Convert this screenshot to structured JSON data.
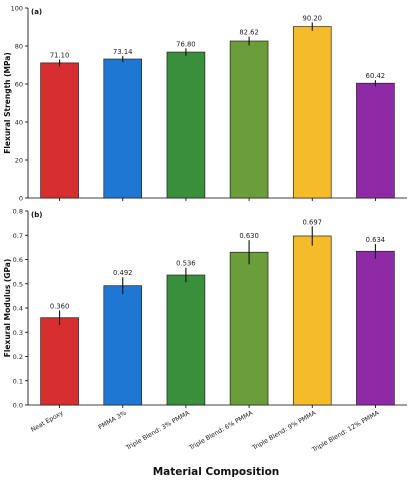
{
  "figure": {
    "xlabel": "Material Composition"
  },
  "chart_data": [
    {
      "type": "bar",
      "panel_label": "(a)",
      "ylabel": "Flexural Strength (MPa)",
      "ylim": [
        0,
        100
      ],
      "yticks": [
        0,
        20,
        40,
        60,
        80,
        100
      ],
      "categories": [
        "Neat Epoxy",
        "PMMA 3%",
        "Triple Blend: 3% PMMA",
        "Triple Blend: 6% PMMA",
        "Triple Blend: 9% PMMA",
        "Triple Blend: 12% PMMA"
      ],
      "values": [
        71.1,
        73.14,
        76.8,
        82.62,
        90.2,
        60.42
      ],
      "value_labels": [
        "71.10",
        "73.14",
        "76.80",
        "82.62",
        "90.20",
        "60.42"
      ],
      "errors": [
        1.8,
        1.7,
        2.0,
        2.3,
        2.2,
        1.6
      ],
      "colors": [
        "#d62e2e",
        "#1f77d4",
        "#3a8f3a",
        "#6b9e3a",
        "#f5bc2a",
        "#8e2aa5"
      ],
      "grid": false,
      "show_xticklabels": false
    },
    {
      "type": "bar",
      "panel_label": "(b)",
      "ylabel": "Flexural Modulus (GPa)",
      "ylim": [
        0,
        0.8
      ],
      "yticks": [
        0.0,
        0.1,
        0.2,
        0.3,
        0.4,
        0.5,
        0.6,
        0.7,
        0.8
      ],
      "ytick_labels": [
        "0.0",
        "0.1",
        "0.2",
        "0.3",
        "0.4",
        "0.5",
        "0.6",
        "0.7",
        "0.8"
      ],
      "categories": [
        "Neat Epoxy",
        "PMMA 3%",
        "Triple Blend: 3% PMMA",
        "Triple Blend: 6% PMMA",
        "Triple Blend: 9% PMMA",
        "Triple Blend: 12% PMMA"
      ],
      "values": [
        0.36,
        0.492,
        0.536,
        0.63,
        0.697,
        0.634
      ],
      "value_labels": [
        "0.360",
        "0.492",
        "0.536",
        "0.630",
        "0.697",
        "0.634"
      ],
      "errors": [
        0.03,
        0.035,
        0.03,
        0.05,
        0.04,
        0.03
      ],
      "colors": [
        "#d62e2e",
        "#1f77d4",
        "#3a8f3a",
        "#6b9e3a",
        "#f5bc2a",
        "#8e2aa5"
      ],
      "grid": false,
      "show_xticklabels": true
    }
  ]
}
